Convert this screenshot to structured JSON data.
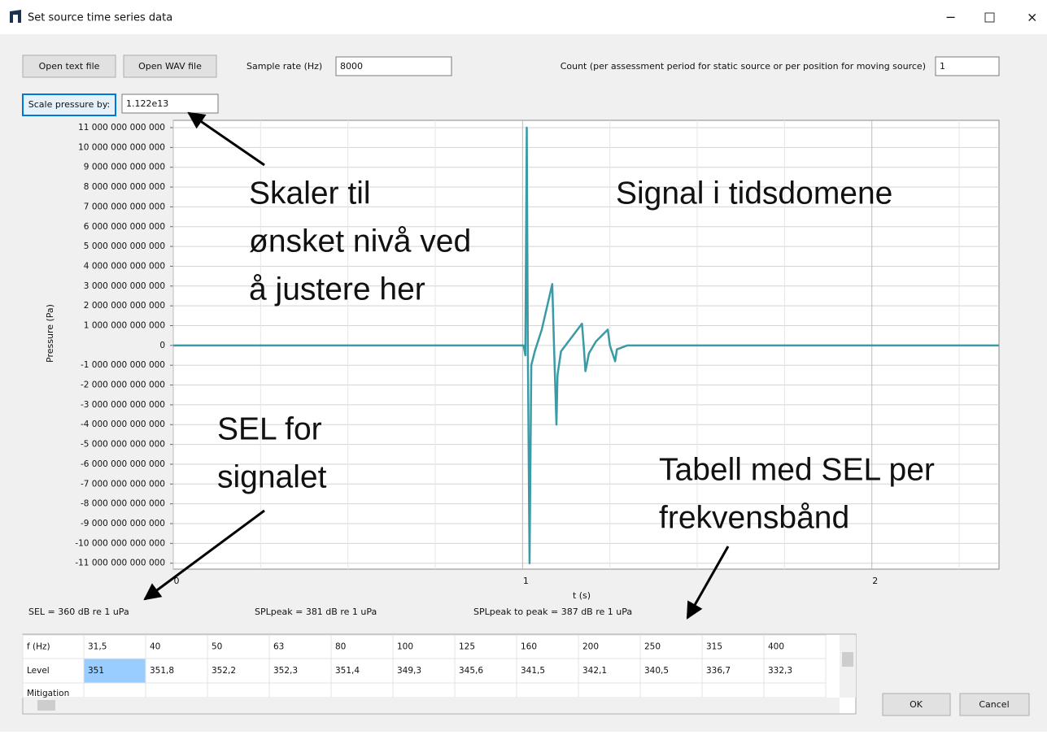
{
  "window": {
    "title": "Set source time series data"
  },
  "buttons": {
    "open_text": "Open text file",
    "open_wav": "Open WAV file",
    "scale": "Scale pressure by:",
    "ok": "OK",
    "cancel": "Cancel"
  },
  "fields": {
    "sample_rate_label": "Sample rate (Hz)",
    "sample_rate": "8000",
    "count_label": "Count (per assessment period for static source or per position for moving source)",
    "count": "1",
    "scale_value": "1.122e13"
  },
  "chart_data": {
    "type": "line",
    "xlabel": "t (s)",
    "ylabel": "Pressure (Pa)",
    "x": [
      0,
      1.003,
      1.008,
      1.012,
      1.015,
      1.02,
      1.025,
      1.035,
      1.055,
      1.085,
      1.09,
      1.097,
      1.1,
      1.11,
      1.14,
      1.17,
      1.175,
      1.18,
      1.19,
      1.21,
      1.244,
      1.25,
      1.265,
      1.27,
      1.3,
      2.364
    ],
    "series": [
      {
        "color": "#3a9aa6",
        "values": [
          0,
          0,
          -500000000000,
          11000000000000,
          0,
          -11000000000000,
          -1000000000000,
          -300000000000,
          800000000000,
          3100000000000,
          0,
          -4000000000000,
          -1500000000000,
          -300000000000,
          400000000000,
          1100000000000,
          0,
          -1300000000000,
          -400000000000,
          200000000000,
          800000000000,
          0,
          -800000000000,
          -200000000000,
          0,
          0
        ]
      }
    ],
    "xlim": [
      0,
      2.364
    ],
    "ylim": [
      -11300000000000,
      11370000000000
    ],
    "xticks": [
      0,
      1,
      2
    ],
    "xminorticks": [
      0.25,
      0.5,
      0.75,
      1.25,
      1.5,
      1.75,
      2.25
    ],
    "yticks": [
      {
        "value": 11000000000000,
        "label": "11 000 000 000 000"
      },
      {
        "value": 10000000000000,
        "label": "10 000 000 000 000"
      },
      {
        "value": 9000000000000,
        "label": "9 000 000 000 000"
      },
      {
        "value": 8000000000000,
        "label": "8 000 000 000 000"
      },
      {
        "value": 7000000000000,
        "label": "7 000 000 000 000"
      },
      {
        "value": 6000000000000,
        "label": "6 000 000 000 000"
      },
      {
        "value": 5000000000000,
        "label": "5 000 000 000 000"
      },
      {
        "value": 4000000000000,
        "label": "4 000 000 000 000"
      },
      {
        "value": 3000000000000,
        "label": "3 000 000 000 000"
      },
      {
        "value": 2000000000000,
        "label": "2 000 000 000 000"
      },
      {
        "value": 1000000000000,
        "label": "1 000 000 000 000"
      },
      0,
      {
        "value": -1000000000000,
        "label": "-1 000 000 000 000"
      },
      {
        "value": -2000000000000,
        "label": "-2 000 000 000 000"
      },
      {
        "value": -3000000000000,
        "label": "-3 000 000 000 000"
      },
      {
        "value": -4000000000000,
        "label": "-4 000 000 000 000"
      },
      {
        "value": -5000000000000,
        "label": "-5 000 000 000 000"
      },
      {
        "value": -6000000000000,
        "label": "-6 000 000 000 000"
      },
      {
        "value": -7000000000000,
        "label": "-7 000 000 000 000"
      },
      {
        "value": -8000000000000,
        "label": "-8 000 000 000 000"
      },
      {
        "value": -9000000000000,
        "label": "-9 000 000 000 000"
      },
      {
        "value": -10000000000000,
        "label": "-10 000 000 000 000"
      },
      {
        "value": -11000000000000,
        "label": "-11 000 000 000 000"
      }
    ],
    "grid": true
  },
  "annotations": [
    {
      "lines": [
        "Skaler til",
        "ønsket nivå ved",
        "å justere her"
      ]
    },
    {
      "lines": [
        "Signal i tidsdomene"
      ]
    },
    {
      "lines": [
        "SEL for",
        "signalet"
      ]
    },
    {
      "lines": [
        "Tabell med SEL per",
        "frekvensbånd"
      ]
    }
  ],
  "stats": [
    "SEL = 360 dB re 1 uPa",
    "SPLpeak = 381 dB re 1 uPa",
    "SPLpeak to peak = 387 dB re 1 uPa"
  ],
  "table": {
    "rows": [
      [
        "f (Hz)",
        "31,5",
        "40",
        "50",
        "63",
        "80",
        "100",
        "125",
        "160",
        "200",
        "250",
        "315",
        "400"
      ],
      [
        "Level",
        "351",
        "351,8",
        "352,2",
        "352,3",
        "351,4",
        "349,3",
        "345,6",
        "341,5",
        "342,1",
        "340,5",
        "336,7",
        "332,3"
      ],
      [
        "Mitigation"
      ]
    ]
  }
}
